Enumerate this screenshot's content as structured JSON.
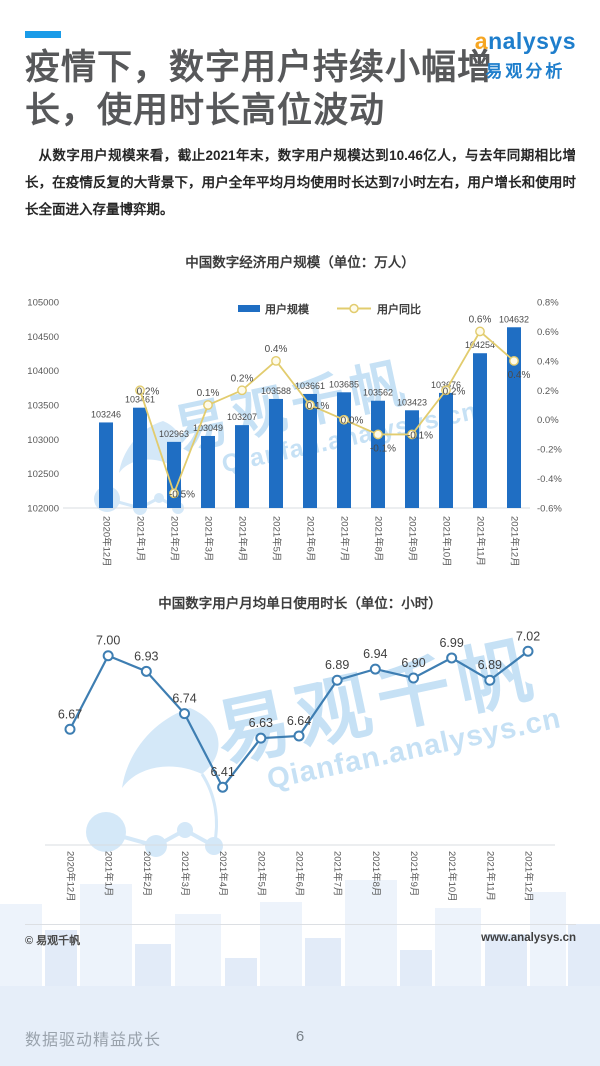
{
  "header": {
    "title_line1": "疫情下，数字用户持续小幅增",
    "title_line2": "长，使用时长高位波动",
    "logo_en": "analysys",
    "logo_cn": "易观分析",
    "accent_color": "#1A9BE8"
  },
  "intro": "从数字用户规模来看，截止2021年末，数字用户规模达到10.46亿人，与去年同期相比增长，在疫情反复的大背景下，用户全年平均月均使用时长达到7小时左右，用户增长和使用时长全面进入存量博弈期。",
  "watermark": {
    "cn": "易观千帆",
    "en": "Qianfan.analysys.cn"
  },
  "footer": {
    "copyright": "© 易观千帆",
    "site": "www.analysys.cn",
    "tagline": "数据驱动精益成长",
    "page": "6"
  },
  "chart_data": [
    {
      "type": "bar",
      "title": "中国数字经济用户规模（单位：万人）",
      "categories": [
        "2020年12月",
        "2021年1月",
        "2021年2月",
        "2021年3月",
        "2021年4月",
        "2021年5月",
        "2021年6月",
        "2021年7月",
        "2021年8月",
        "2021年9月",
        "2021年10月",
        "2021年11月",
        "2021年12月"
      ],
      "series": [
        {
          "name": "用户规模",
          "type": "bar",
          "color": "#1F6EC3",
          "values": [
            103246,
            103461,
            102963,
            103049,
            103207,
            103588,
            103661,
            103685,
            103562,
            103423,
            103676,
            104254,
            104632
          ]
        },
        {
          "name": "用户同比",
          "type": "line",
          "color": "#E2CC6E",
          "values": [
            null,
            0.2,
            -0.5,
            0.1,
            0.2,
            0.4,
            0.1,
            0.0,
            -0.1,
            -0.1,
            0.2,
            0.6,
            0.4
          ],
          "labels": [
            null,
            "0.2%",
            "-0.5%",
            "0.1%",
            "0.2%",
            "0.4%",
            "0.1%",
            "0.0%",
            "-0.1%",
            "-0.1%",
            "0.2%",
            "0.6%",
            "0.4%"
          ],
          "label_pos": [
            null,
            "r",
            "r",
            "a",
            "a",
            "a",
            "r",
            "r",
            "br",
            "r",
            "r",
            "a",
            "br"
          ]
        }
      ],
      "y_left": {
        "ticks": [
          "105000",
          "104500",
          "104000",
          "103500",
          "103000",
          "102500",
          "102000"
        ],
        "min": 102000,
        "max": 105000
      },
      "y_right": {
        "ticks": [
          "0.8%",
          "0.6%",
          "0.4%",
          "0.2%",
          "0.0%",
          "-0.2%",
          "-0.4%",
          "-0.6%"
        ],
        "min": -0.6,
        "max": 0.8
      },
      "legend_position": "top",
      "grid": false
    },
    {
      "type": "line",
      "title": "中国数字用户月均单日使用时长（单位：小时）",
      "categories": [
        "2020年12月",
        "2021年1月",
        "2021年2月",
        "2021年3月",
        "2021年4月",
        "2021年5月",
        "2021年6月",
        "2021年7月",
        "2021年8月",
        "2021年9月",
        "2021年10月",
        "2021年11月",
        "2021年12月"
      ],
      "values": [
        6.67,
        7.0,
        6.93,
        6.74,
        6.41,
        6.63,
        6.64,
        6.89,
        6.94,
        6.9,
        6.99,
        6.89,
        7.02
      ],
      "labels": [
        "6.67",
        "7.00",
        "6.93",
        "6.74",
        "6.41",
        "6.63",
        "6.64",
        "6.89",
        "6.94",
        "6.90",
        "6.99",
        "6.89",
        "7.02"
      ],
      "color": "#3E7EB2",
      "ylim": [
        6.2,
        7.25
      ],
      "grid": false,
      "legend_position": "none"
    }
  ]
}
